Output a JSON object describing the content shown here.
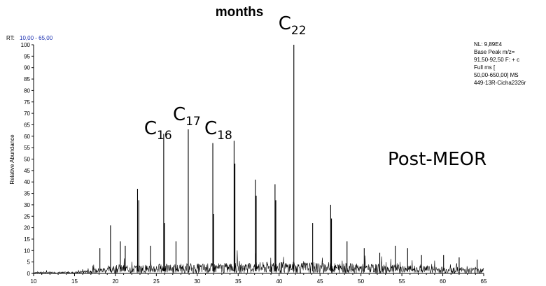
{
  "title": "months",
  "rt": {
    "label": "RT:",
    "value": "10,00 - 65,00"
  },
  "info_lines": [
    "NL: 9,89E4",
    "Base Peak m/z=",
    "91,50-92,50 F: + c",
    "Full ms [",
    "50,00-650,00]  MS",
    "449-13R-Cicha2326r"
  ],
  "sample_label": "Post-MEOR",
  "chart_data": {
    "type": "line",
    "xlabel": "",
    "ylabel": "Relative Abundance",
    "xlim": [
      10,
      65
    ],
    "ylim": [
      0,
      100
    ],
    "x_ticks": [
      "10",
      "15",
      "20",
      "25",
      "30",
      "35",
      "40",
      "45",
      "50",
      "55",
      "60",
      "65"
    ],
    "y_ticks": [
      "0",
      "5",
      "10",
      "15",
      "20",
      "25",
      "30",
      "35",
      "40",
      "45",
      "50",
      "55",
      "60",
      "65",
      "70",
      "75",
      "80",
      "85",
      "90",
      "95",
      "100"
    ],
    "peaks": [
      {
        "x": 18.1,
        "y": 11
      },
      {
        "x": 19.4,
        "y": 21
      },
      {
        "x": 20.6,
        "y": 14
      },
      {
        "x": 21.2,
        "y": 12
      },
      {
        "x": 22.7,
        "y": 37
      },
      {
        "x": 22.85,
        "y": 32
      },
      {
        "x": 24.3,
        "y": 12
      },
      {
        "x": 25.9,
        "y": 61
      },
      {
        "x": 26.0,
        "y": 22
      },
      {
        "x": 27.4,
        "y": 14
      },
      {
        "x": 28.9,
        "y": 63
      },
      {
        "x": 31.9,
        "y": 57
      },
      {
        "x": 32.0,
        "y": 26
      },
      {
        "x": 34.5,
        "y": 58
      },
      {
        "x": 34.6,
        "y": 48
      },
      {
        "x": 37.1,
        "y": 41
      },
      {
        "x": 37.2,
        "y": 34
      },
      {
        "x": 39.5,
        "y": 39
      },
      {
        "x": 39.6,
        "y": 32
      },
      {
        "x": 41.8,
        "y": 100
      },
      {
        "x": 44.1,
        "y": 22
      },
      {
        "x": 46.3,
        "y": 30
      },
      {
        "x": 46.4,
        "y": 24
      },
      {
        "x": 48.3,
        "y": 14
      },
      {
        "x": 50.4,
        "y": 11
      },
      {
        "x": 52.3,
        "y": 9
      },
      {
        "x": 54.2,
        "y": 12
      },
      {
        "x": 55.7,
        "y": 11
      },
      {
        "x": 57.4,
        "y": 8
      },
      {
        "x": 60.1,
        "y": 8
      },
      {
        "x": 62.0,
        "y": 7
      },
      {
        "x": 64.2,
        "y": 6
      }
    ],
    "annotations": [
      {
        "label": "C",
        "sub": "16",
        "x": 25.9
      },
      {
        "label": "C",
        "sub": "17",
        "x": 28.9
      },
      {
        "label": "C",
        "sub": "18",
        "x": 31.9
      },
      {
        "label": "C",
        "sub": "22",
        "x": 41.8
      }
    ]
  }
}
